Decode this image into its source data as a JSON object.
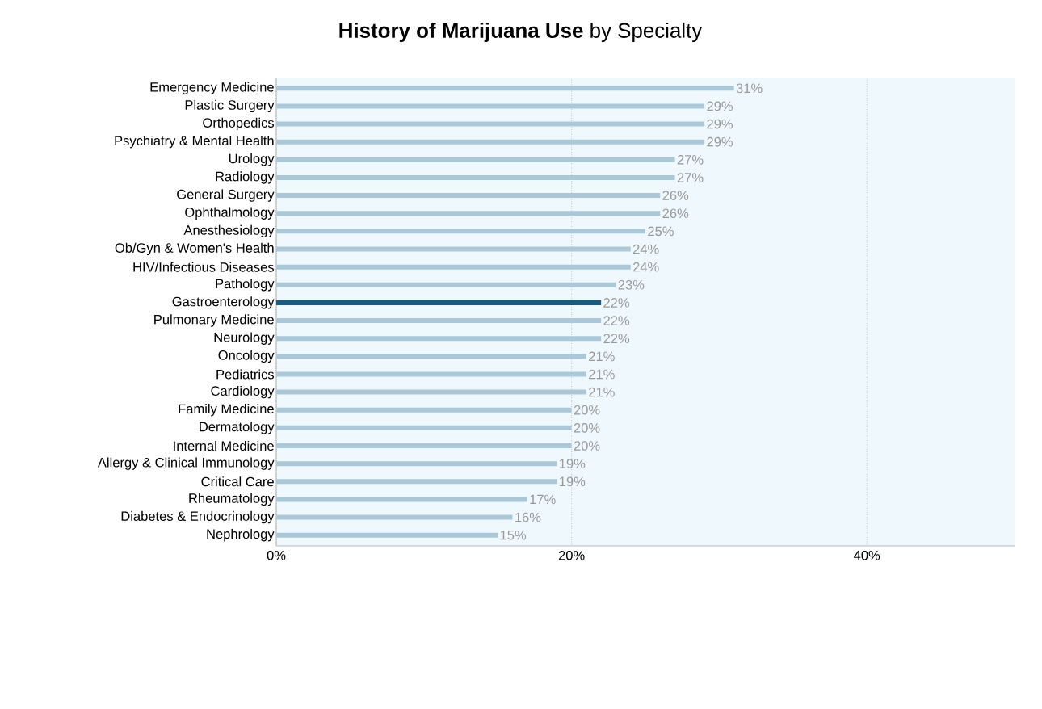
{
  "chart_data": {
    "type": "bar",
    "orientation": "horizontal",
    "title": "**History of Marijuana Use** by Specialty",
    "categories": [
      "Emergency Medicine",
      "Plastic Surgery",
      "Orthopedics",
      "Psychiatry & Mental Health",
      "Urology",
      "Radiology",
      "General Surgery",
      "Ophthalmology",
      "Anesthesiology",
      "Ob/Gyn & Women's Health",
      "HIV/Infectious Diseases",
      "Pathology",
      "Gastroenterology",
      "Pulmonary Medicine",
      "Neurology",
      "Oncology",
      "Pediatrics",
      "Cardiology",
      "Family Medicine",
      "Dermatology",
      "Internal Medicine",
      "Allergy & Clinical Immunology",
      "Critical Care",
      "Rheumatology",
      "Diabetes & Endocrinology",
      "Nephrology"
    ],
    "values": [
      31,
      29,
      29,
      29,
      27,
      27,
      26,
      26,
      25,
      24,
      24,
      23,
      22,
      22,
      22,
      21,
      21,
      21,
      20,
      20,
      20,
      19,
      19,
      17,
      16,
      15
    ],
    "value_labels": [
      "31%",
      "29%",
      "29%",
      "29%",
      "27%",
      "27%",
      "26%",
      "26%",
      "25%",
      "24%",
      "24%",
      "23%",
      "22%",
      "22%",
      "22%",
      "21%",
      "21%",
      "21%",
      "20%",
      "20%",
      "20%",
      "19%",
      "19%",
      "17%",
      "16%",
      "15%"
    ],
    "colors": [
      "#a9c9da",
      "#a9c9da",
      "#a9c9da",
      "#a9c9da",
      "#a9c9da",
      "#a9c9da",
      "#a9c9da",
      "#a9c9da",
      "#a9c9da",
      "#a9c9da",
      "#a9c9da",
      "#a9c9da",
      "#1b5a80",
      "#a9c9da",
      "#a9c9da",
      "#a9c9da",
      "#a9c9da",
      "#a9c9da",
      "#a9c9da",
      "#a9c9da",
      "#a9c9da",
      "#a9c9da",
      "#a9c9da",
      "#a9c9da",
      "#a9c9da",
      "#a9c9da"
    ],
    "xlim": [
      0,
      50
    ],
    "xticks": [
      {
        "value": 0,
        "label": "0%"
      },
      {
        "value": 20,
        "label": "20%"
      },
      {
        "value": 40,
        "label": "40%"
      }
    ],
    "grid": "x"
  }
}
